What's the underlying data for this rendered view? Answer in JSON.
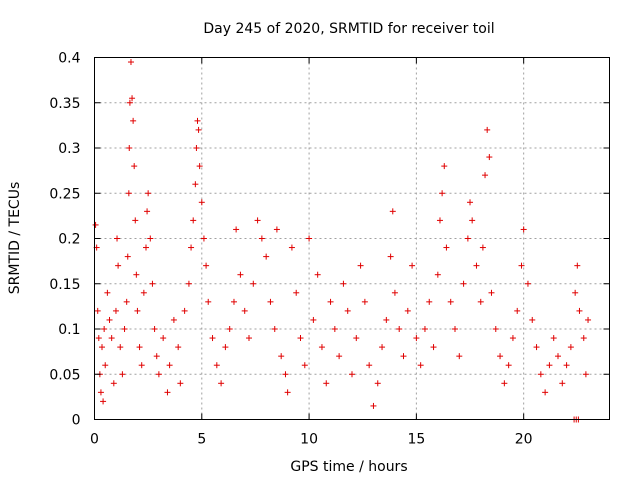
{
  "chart_data": {
    "type": "scatter",
    "title": "Day 245 of 2020, SRMTID for receiver toil",
    "xlabel": "GPS time / hours",
    "ylabel": "SRMTID / TECUs",
    "xlim": [
      0,
      24
    ],
    "ylim": [
      0,
      0.4
    ],
    "x_ticks": [
      0,
      5,
      10,
      15,
      20
    ],
    "x_tick_labels": [
      "0",
      "5",
      "10",
      "15",
      "20"
    ],
    "y_ticks": [
      0,
      0.05,
      0.1,
      0.15,
      0.2,
      0.25,
      0.3,
      0.35,
      0.4
    ],
    "y_tick_labels": [
      "0",
      "0.05",
      "0.1",
      "0.15",
      "0.2",
      "0.25",
      "0.3",
      "0.35",
      "0.4"
    ],
    "grid": true,
    "marker": "+",
    "color": "#e00000",
    "series": [
      {
        "name": "SRMTID",
        "points": [
          [
            0.05,
            0.215
          ],
          [
            0.1,
            0.19
          ],
          [
            0.15,
            0.12
          ],
          [
            0.2,
            0.09
          ],
          [
            0.25,
            0.05
          ],
          [
            0.3,
            0.03
          ],
          [
            0.35,
            0.08
          ],
          [
            0.4,
            0.02
          ],
          [
            0.45,
            0.1
          ],
          [
            0.5,
            0.06
          ],
          [
            0.6,
            0.14
          ],
          [
            0.7,
            0.11
          ],
          [
            0.8,
            0.09
          ],
          [
            0.9,
            0.04
          ],
          [
            1.0,
            0.12
          ],
          [
            1.05,
            0.2
          ],
          [
            1.1,
            0.17
          ],
          [
            1.2,
            0.08
          ],
          [
            1.3,
            0.05
          ],
          [
            1.4,
            0.1
          ],
          [
            1.5,
            0.13
          ],
          [
            1.55,
            0.18
          ],
          [
            1.6,
            0.25
          ],
          [
            1.62,
            0.3
          ],
          [
            1.65,
            0.35
          ],
          [
            1.7,
            0.395
          ],
          [
            1.75,
            0.355
          ],
          [
            1.8,
            0.33
          ],
          [
            1.85,
            0.28
          ],
          [
            1.9,
            0.22
          ],
          [
            1.95,
            0.16
          ],
          [
            2.0,
            0.12
          ],
          [
            2.1,
            0.08
          ],
          [
            2.2,
            0.06
          ],
          [
            2.3,
            0.14
          ],
          [
            2.4,
            0.19
          ],
          [
            2.45,
            0.23
          ],
          [
            2.5,
            0.25
          ],
          [
            2.6,
            0.2
          ],
          [
            2.7,
            0.15
          ],
          [
            2.8,
            0.1
          ],
          [
            2.9,
            0.07
          ],
          [
            3.0,
            0.05
          ],
          [
            3.2,
            0.09
          ],
          [
            3.4,
            0.03
          ],
          [
            3.5,
            0.06
          ],
          [
            3.7,
            0.11
          ],
          [
            3.9,
            0.08
          ],
          [
            4.0,
            0.04
          ],
          [
            4.2,
            0.12
          ],
          [
            4.4,
            0.15
          ],
          [
            4.5,
            0.19
          ],
          [
            4.6,
            0.22
          ],
          [
            4.7,
            0.26
          ],
          [
            4.75,
            0.3
          ],
          [
            4.8,
            0.33
          ],
          [
            4.85,
            0.32
          ],
          [
            4.9,
            0.28
          ],
          [
            5.0,
            0.24
          ],
          [
            5.1,
            0.2
          ],
          [
            5.2,
            0.17
          ],
          [
            5.3,
            0.13
          ],
          [
            5.5,
            0.09
          ],
          [
            5.7,
            0.06
          ],
          [
            5.9,
            0.04
          ],
          [
            6.1,
            0.08
          ],
          [
            6.3,
            0.1
          ],
          [
            6.5,
            0.13
          ],
          [
            6.6,
            0.21
          ],
          [
            6.8,
            0.16
          ],
          [
            7.0,
            0.12
          ],
          [
            7.2,
            0.09
          ],
          [
            7.4,
            0.15
          ],
          [
            7.6,
            0.22
          ],
          [
            7.8,
            0.2
          ],
          [
            8.0,
            0.18
          ],
          [
            8.2,
            0.13
          ],
          [
            8.4,
            0.1
          ],
          [
            8.5,
            0.21
          ],
          [
            8.7,
            0.07
          ],
          [
            8.9,
            0.05
          ],
          [
            9.0,
            0.03
          ],
          [
            9.2,
            0.19
          ],
          [
            9.4,
            0.14
          ],
          [
            9.6,
            0.09
          ],
          [
            9.8,
            0.06
          ],
          [
            10.0,
            0.2
          ],
          [
            10.2,
            0.11
          ],
          [
            10.4,
            0.16
          ],
          [
            10.6,
            0.08
          ],
          [
            10.8,
            0.04
          ],
          [
            11.0,
            0.13
          ],
          [
            11.2,
            0.1
          ],
          [
            11.4,
            0.07
          ],
          [
            11.6,
            0.15
          ],
          [
            11.8,
            0.12
          ],
          [
            12.0,
            0.05
          ],
          [
            12.2,
            0.09
          ],
          [
            12.4,
            0.17
          ],
          [
            12.6,
            0.13
          ],
          [
            12.8,
            0.06
          ],
          [
            13.0,
            0.015
          ],
          [
            13.2,
            0.04
          ],
          [
            13.4,
            0.08
          ],
          [
            13.6,
            0.11
          ],
          [
            13.8,
            0.18
          ],
          [
            13.9,
            0.23
          ],
          [
            14.0,
            0.14
          ],
          [
            14.2,
            0.1
          ],
          [
            14.4,
            0.07
          ],
          [
            14.6,
            0.12
          ],
          [
            14.8,
            0.17
          ],
          [
            15.0,
            0.09
          ],
          [
            15.2,
            0.06
          ],
          [
            15.4,
            0.1
          ],
          [
            15.6,
            0.13
          ],
          [
            15.8,
            0.08
          ],
          [
            16.0,
            0.16
          ],
          [
            16.1,
            0.22
          ],
          [
            16.2,
            0.25
          ],
          [
            16.3,
            0.28
          ],
          [
            16.4,
            0.19
          ],
          [
            16.6,
            0.13
          ],
          [
            16.8,
            0.1
          ],
          [
            17.0,
            0.07
          ],
          [
            17.2,
            0.15
          ],
          [
            17.4,
            0.2
          ],
          [
            17.5,
            0.24
          ],
          [
            17.6,
            0.22
          ],
          [
            17.8,
            0.17
          ],
          [
            18.0,
            0.13
          ],
          [
            18.1,
            0.19
          ],
          [
            18.2,
            0.27
          ],
          [
            18.3,
            0.32
          ],
          [
            18.4,
            0.29
          ],
          [
            18.5,
            0.14
          ],
          [
            18.7,
            0.1
          ],
          [
            18.9,
            0.07
          ],
          [
            19.1,
            0.04
          ],
          [
            19.3,
            0.06
          ],
          [
            19.5,
            0.09
          ],
          [
            19.7,
            0.12
          ],
          [
            19.9,
            0.17
          ],
          [
            20.0,
            0.21
          ],
          [
            20.2,
            0.15
          ],
          [
            20.4,
            0.11
          ],
          [
            20.6,
            0.08
          ],
          [
            20.8,
            0.05
          ],
          [
            21.0,
            0.03
          ],
          [
            21.2,
            0.06
          ],
          [
            21.4,
            0.09
          ],
          [
            21.6,
            0.07
          ],
          [
            21.8,
            0.04
          ],
          [
            22.0,
            0.06
          ],
          [
            22.2,
            0.08
          ],
          [
            22.4,
            0.14
          ],
          [
            22.5,
            0.17
          ],
          [
            22.6,
            0.12
          ],
          [
            22.8,
            0.09
          ],
          [
            22.9,
            0.05
          ],
          [
            23.0,
            0.11
          ],
          [
            22.35,
            0.0
          ],
          [
            22.45,
            0.0
          ],
          [
            22.55,
            0.0
          ]
        ]
      }
    ]
  }
}
